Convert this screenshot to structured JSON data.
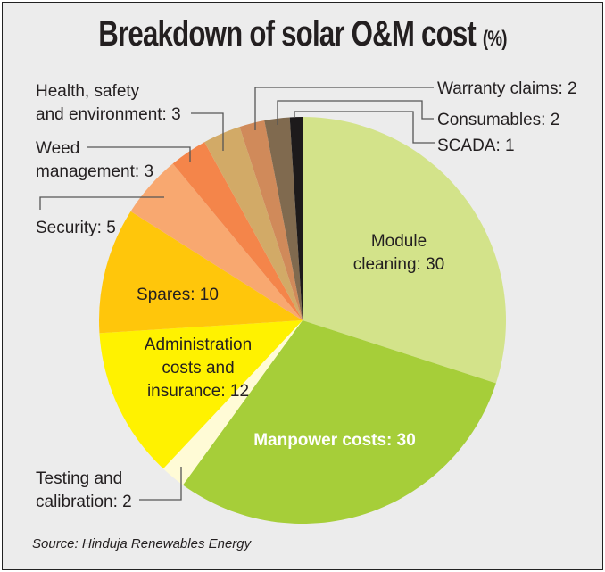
{
  "chart_data": {
    "type": "pie",
    "title": "Breakdown of solar O&M cost",
    "title_unit": "(%)",
    "source": "Source: Hinduja Renewables Energy",
    "start": "12 o'clock, clockwise",
    "slices": [
      {
        "name": "Module cleaning",
        "value": 30,
        "color": "#d3e38a",
        "label_lines": [
          "Module",
          "cleaning: 30"
        ],
        "label_style": "inside"
      },
      {
        "name": "Manpower costs",
        "value": 30,
        "color": "#a6ce39",
        "label_lines": [
          "Manpower costs: 30"
        ],
        "label_style": "inside-white"
      },
      {
        "name": "Testing and calibration",
        "value": 2,
        "color": "#fffbd6",
        "label_lines": [
          "Testing and",
          "calibration: 2"
        ],
        "label_style": "outside"
      },
      {
        "name": "Administration costs and insurance",
        "value": 12,
        "color": "#fff200",
        "label_lines": [
          "Administration",
          "costs and",
          "insurance: 12"
        ],
        "label_style": "inside"
      },
      {
        "name": "Spares",
        "value": 10,
        "color": "#ffc60b",
        "label_lines": [
          "Spares: 10"
        ],
        "label_style": "inside"
      },
      {
        "name": "Security",
        "value": 5,
        "color": "#f8a870",
        "label_lines": [
          "Security: 5"
        ],
        "label_style": "outside"
      },
      {
        "name": "Weed management",
        "value": 3,
        "color": "#f4854a",
        "label_lines": [
          "Weed",
          "management: 3"
        ],
        "label_style": "outside"
      },
      {
        "name": "Health, safety and environment",
        "value": 3,
        "color": "#d2aa67",
        "label_lines": [
          "Health, safety",
          "and environment: 3"
        ],
        "label_style": "outside"
      },
      {
        "name": "Warranty claims",
        "value": 2,
        "color": "#d08a5a",
        "label_lines": [
          "Warranty claims: 2"
        ],
        "label_style": "outside"
      },
      {
        "name": "Consumables",
        "value": 2,
        "color": "#806a4f",
        "label_lines": [
          "Consumables: 2"
        ],
        "label_style": "outside"
      },
      {
        "name": "SCADA",
        "value": 1,
        "color": "#1d1a1b",
        "label_lines": [
          "SCADA: 1"
        ],
        "label_style": "outside"
      }
    ]
  }
}
